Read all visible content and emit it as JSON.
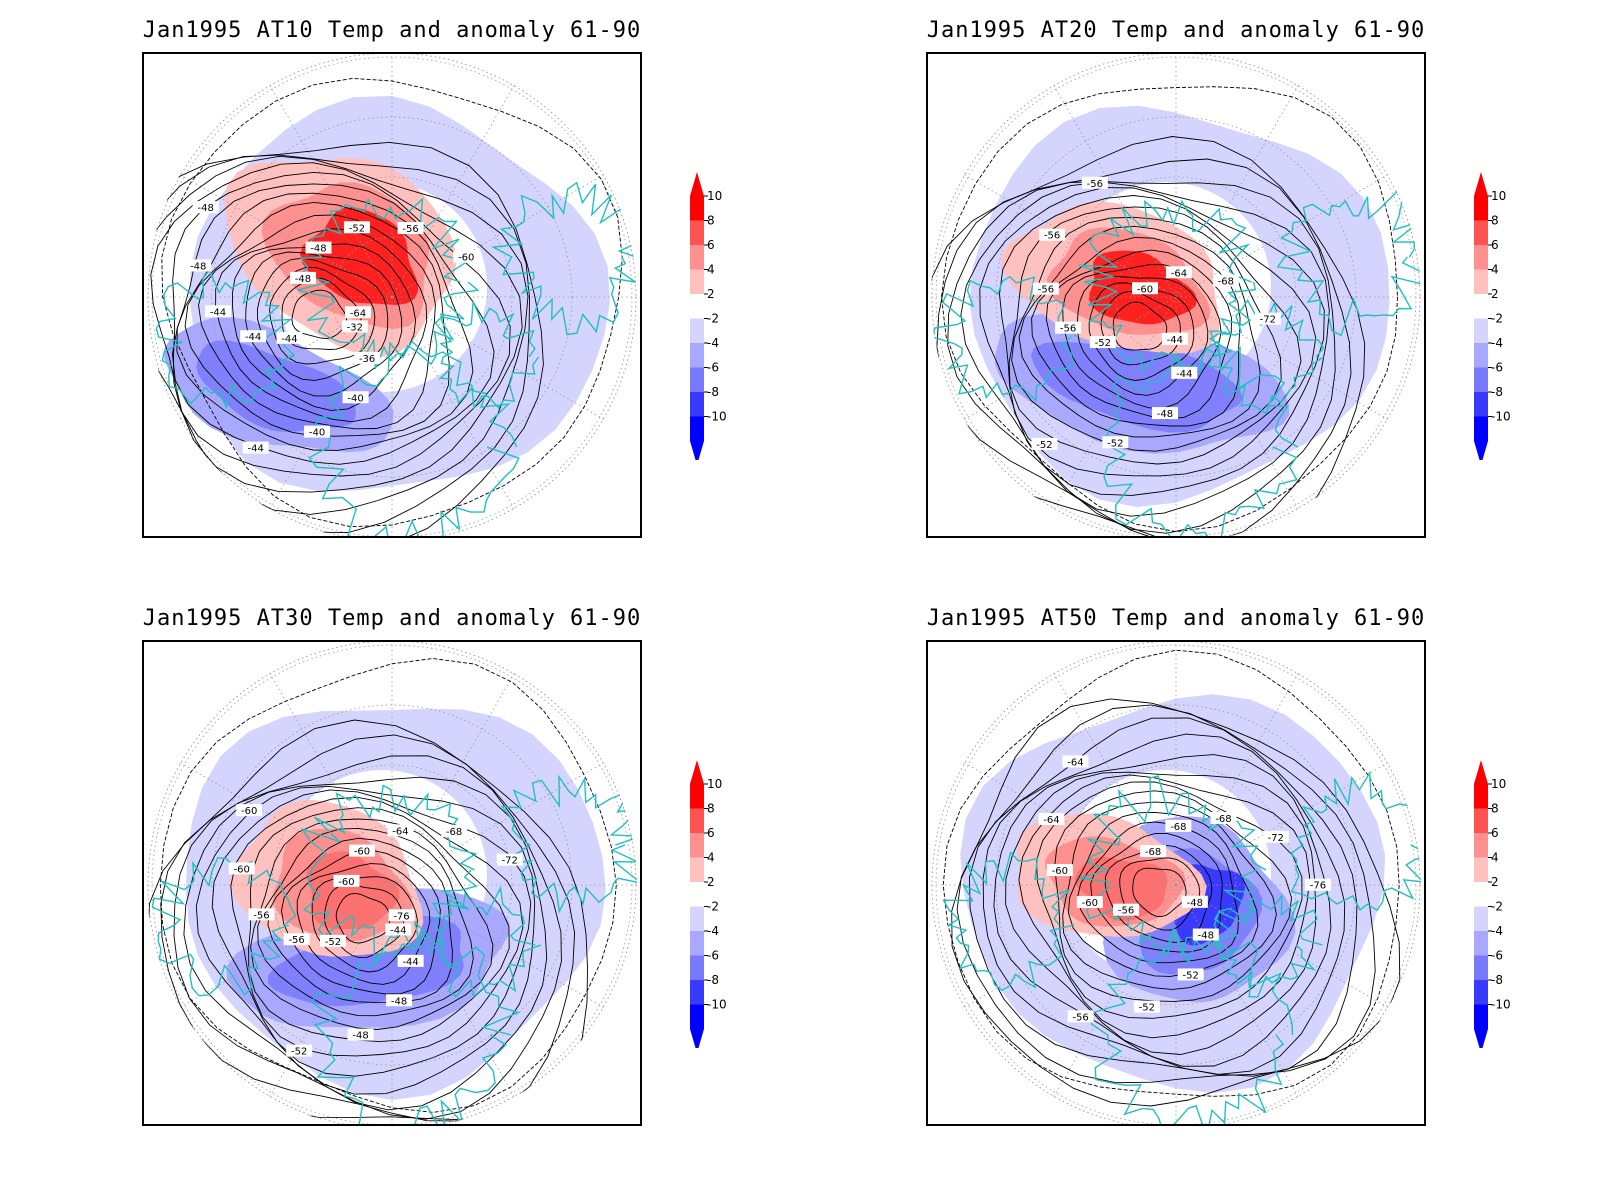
{
  "panels": [
    {
      "id": "at10",
      "title": "Jan1995 AT10 Temp and anomaly 61-90",
      "contour_labels": [
        "-32",
        "-36",
        "-40",
        "-40",
        "-44",
        "-44",
        "-44",
        "-44",
        "-48",
        "-48",
        "-48",
        "-48",
        "-52",
        "-56",
        "-60",
        "-64"
      ]
    },
    {
      "id": "at20",
      "title": "Jan1995 AT20 Temp and anomaly 61-90",
      "contour_labels": [
        "-44",
        "-44",
        "-48",
        "-52",
        "-52",
        "-52",
        "-56",
        "-56",
        "-56",
        "-56",
        "-60",
        "-64",
        "-68",
        "-72"
      ]
    },
    {
      "id": "at30",
      "title": "Jan1995 AT30 Temp and anomaly 61-90",
      "contour_labels": [
        "-44",
        "-44",
        "-48",
        "-48",
        "-52",
        "-52",
        "-56",
        "-56",
        "-60",
        "-60",
        "-60",
        "-60",
        "-64",
        "-68",
        "-72",
        "-76"
      ]
    },
    {
      "id": "at50",
      "title": "Jan1995 AT50 Temp and anomaly 61-90",
      "contour_labels": [
        "-48",
        "-48",
        "-52",
        "-52",
        "-56",
        "-56",
        "-60",
        "-60",
        "-64",
        "-64",
        "-68",
        "-68",
        "-68",
        "-72",
        "-76"
      ]
    }
  ],
  "colorbar": {
    "levels": [
      "10",
      "8",
      "6",
      "4",
      "2",
      "-2",
      "-4",
      "-6",
      "-8",
      "-10"
    ],
    "colors": [
      "#ff0000",
      "#ff5252",
      "#ff9090",
      "#ffc0c0",
      "#ffffff",
      "#d4d4ff",
      "#a8a8ff",
      "#7878ff",
      "#3a3aff",
      "#0000ff"
    ]
  },
  "colors": {
    "coastline": "#20c0c0",
    "contour": "#000000",
    "warm": "#ff3030",
    "cold": "#6a6aff",
    "weak_cold": "#d4d4ff"
  }
}
